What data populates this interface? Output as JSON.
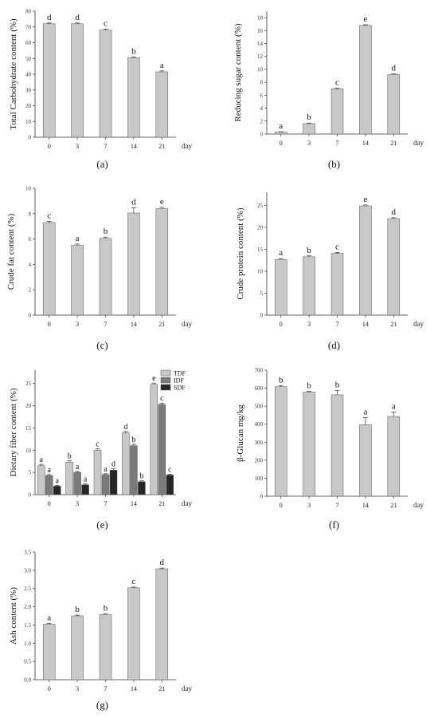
{
  "chart_data": [
    {
      "type": "bar",
      "panel": "(a)",
      "ylabel": "Total Carbohydrate content (%)",
      "unit": "day",
      "categories": [
        "0",
        "3",
        "7",
        "14",
        "21"
      ],
      "ylim": [
        0,
        80
      ],
      "yticks": [
        "0",
        "10",
        "20",
        "30",
        "40",
        "50",
        "60",
        "70",
        "80"
      ],
      "values": [
        72,
        72,
        68,
        50.5,
        41.5
      ],
      "errors": [
        0.5,
        0.5,
        0.7,
        0.5,
        0.6
      ],
      "letters": [
        "d",
        "d",
        "c",
        "b",
        "a"
      ]
    },
    {
      "type": "bar",
      "panel": "(b)",
      "ylabel": "Reducing sugar content (%)",
      "unit": "day",
      "categories": [
        "0",
        "3",
        "7",
        "14",
        "21"
      ],
      "ylim": [
        0,
        19
      ],
      "yticks": [
        "0",
        "2",
        "4",
        "6",
        "8",
        "10",
        "12",
        "14",
        "16",
        "18"
      ],
      "values": [
        0.3,
        1.6,
        7.0,
        16.8,
        9.2
      ],
      "errors": [
        0.05,
        0.1,
        0.1,
        0.1,
        0.1
      ],
      "letters": [
        "a",
        "b",
        "c",
        "e",
        "d"
      ]
    },
    {
      "type": "bar",
      "panel": "(c)",
      "ylabel": "Crude fat content (%)",
      "unit": "day",
      "categories": [
        "0",
        "3",
        "7",
        "14",
        "21"
      ],
      "ylim": [
        0,
        10
      ],
      "yticks": [
        "0",
        "2",
        "4",
        "6",
        "8",
        "10"
      ],
      "values": [
        7.3,
        5.5,
        6.05,
        8.05,
        8.4
      ],
      "errors": [
        0.1,
        0.1,
        0.1,
        0.4,
        0.1
      ],
      "letters": [
        "c",
        "a",
        "b",
        "d",
        "e"
      ]
    },
    {
      "type": "bar",
      "panel": "(d)",
      "ylabel": "Crude protein content (%)",
      "unit": "day",
      "categories": [
        "0",
        "3",
        "7",
        "14",
        "21"
      ],
      "ylim": [
        0,
        28
      ],
      "yticks": [
        "0",
        "5",
        "10",
        "15",
        "20",
        "25"
      ],
      "values": [
        12.7,
        13.3,
        14.1,
        24.9,
        22.0
      ],
      "errors": [
        0.2,
        0.2,
        0.2,
        0.2,
        0.2
      ],
      "letters": [
        "a",
        "b",
        "c",
        "e",
        "d"
      ]
    },
    {
      "type": "bar",
      "panel": "(e)",
      "ylabel": "Dietary fiber content (%)",
      "unit": "day",
      "categories": [
        "0",
        "3",
        "7",
        "14",
        "21"
      ],
      "ylim": [
        0,
        28
      ],
      "yticks": [
        "0",
        "5",
        "10",
        "15",
        "20",
        "25"
      ],
      "series": [
        {
          "name": "TDF",
          "color": "#c8c8c8",
          "values": [
            6.5,
            7.3,
            10.0,
            13.9,
            24.8
          ],
          "errors": [
            0.3,
            0.3,
            0.3,
            0.3,
            0.3
          ],
          "letters": [
            "a",
            "b",
            "c",
            "d",
            "e"
          ]
        },
        {
          "name": "IDF",
          "color": "#7b7b7b",
          "values": [
            4.3,
            5.0,
            4.5,
            11.0,
            20.3
          ],
          "errors": [
            0.2,
            0.2,
            0.2,
            0.3,
            0.3
          ],
          "letters": [
            "a",
            "a",
            "a",
            "b",
            "c"
          ]
        },
        {
          "name": "SDF",
          "color": "#262626",
          "values": [
            1.9,
            2.2,
            5.5,
            2.9,
            4.4
          ],
          "errors": [
            0.2,
            0.2,
            0.3,
            0.2,
            0.2
          ],
          "letters": [
            "a",
            "a",
            "d",
            "b",
            "c"
          ]
        }
      ]
    },
    {
      "type": "bar",
      "panel": "(f)",
      "ylabel": "β-Glucan mg/kg",
      "unit": "day",
      "categories": [
        "0",
        "3",
        "7",
        "14",
        "21"
      ],
      "ylim": [
        0,
        700
      ],
      "yticks": [
        "0",
        "100",
        "200",
        "300",
        "400",
        "500",
        "600",
        "700"
      ],
      "values": [
        608,
        578,
        563,
        397,
        443
      ],
      "errors": [
        6,
        5,
        25,
        40,
        25
      ],
      "letters": [
        "b",
        "b",
        "b",
        "a",
        "a"
      ]
    },
    {
      "type": "bar",
      "panel": "(g)",
      "ylabel": "Ash content (%)",
      "unit": "day",
      "categories": [
        "0",
        "3",
        "7",
        "14",
        "21"
      ],
      "ylim": [
        0,
        3.5
      ],
      "yticks": [
        "0.0",
        "0.5",
        "1.0",
        "1.5",
        "2.0",
        "2.5",
        "3.0",
        "3.5"
      ],
      "values": [
        1.52,
        1.75,
        1.79,
        2.52,
        3.04
      ],
      "errors": [
        0.02,
        0.02,
        0.02,
        0.02,
        0.02
      ],
      "letters": [
        "a",
        "b",
        "b",
        "c",
        "d"
      ]
    }
  ],
  "colors": {
    "bar_fill": "#c8c8c8",
    "bar_stroke": "#555555",
    "axis": "#333333"
  }
}
